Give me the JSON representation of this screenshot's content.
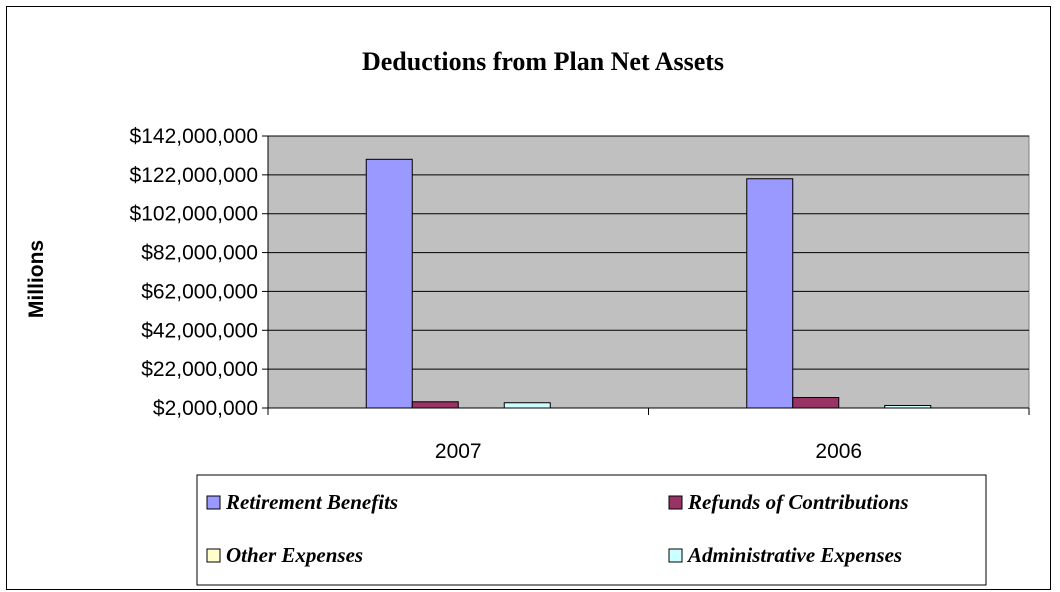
{
  "chart_data": {
    "type": "bar",
    "title": "Deductions from Plan Net Assets",
    "ylabel": "Millions",
    "xlabel": "",
    "categories": [
      "2007",
      "2006"
    ],
    "y_ticks": [
      "$2,000,000",
      "$22,000,000",
      "$42,000,000",
      "$62,000,000",
      "$82,000,000",
      "$102,000,000",
      "$122,000,000",
      "$142,000,000"
    ],
    "ylim": [
      2000000,
      142000000
    ],
    "grid": true,
    "legend_position": "bottom",
    "series": [
      {
        "name": "Retirement Benefits",
        "color": "#9999ff",
        "values": [
          130000000,
          120000000
        ]
      },
      {
        "name": "Refunds of Contributions",
        "color": "#993366",
        "values": [
          5200000,
          7400000
        ]
      },
      {
        "name": "Other Expenses",
        "color": "#ffffcc",
        "values": [
          0,
          0
        ]
      },
      {
        "name": "Administrative Expenses",
        "color": "#ccffff",
        "values": [
          4700000,
          3300000
        ]
      }
    ],
    "plot_background": "#c0c0c0"
  }
}
